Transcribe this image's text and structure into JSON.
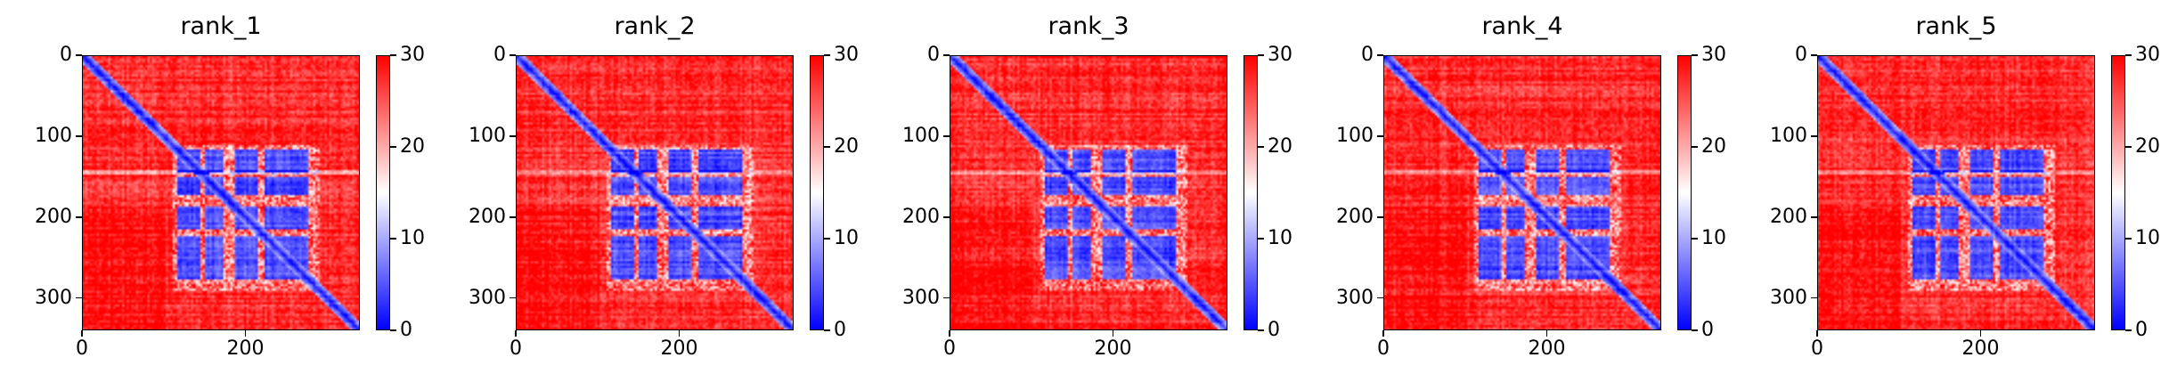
{
  "chart_data": [
    {
      "type": "heatmap",
      "title": "rank_1",
      "x_ticks": [
        "0",
        "200"
      ],
      "y_ticks": [
        "0",
        "100",
        "200",
        "300"
      ],
      "colorbar_ticks": [
        "0",
        "10",
        "20",
        "30"
      ],
      "xlim": [
        0,
        340
      ],
      "ylim": [
        340,
        0
      ],
      "clim": [
        0,
        30
      ],
      "colormap": "bwr"
    },
    {
      "type": "heatmap",
      "title": "rank_2",
      "x_ticks": [
        "0",
        "200"
      ],
      "y_ticks": [
        "0",
        "100",
        "200",
        "300"
      ],
      "colorbar_ticks": [
        "0",
        "10",
        "20",
        "30"
      ],
      "xlim": [
        0,
        340
      ],
      "ylim": [
        340,
        0
      ],
      "clim": [
        0,
        30
      ],
      "colormap": "bwr"
    },
    {
      "type": "heatmap",
      "title": "rank_3",
      "x_ticks": [
        "0",
        "200"
      ],
      "y_ticks": [
        "0",
        "100",
        "200",
        "300"
      ],
      "colorbar_ticks": [
        "0",
        "10",
        "20",
        "30"
      ],
      "xlim": [
        0,
        340
      ],
      "ylim": [
        340,
        0
      ],
      "clim": [
        0,
        30
      ],
      "colormap": "bwr"
    },
    {
      "type": "heatmap",
      "title": "rank_4",
      "x_ticks": [
        "0",
        "200"
      ],
      "y_ticks": [
        "0",
        "100",
        "200",
        "300"
      ],
      "colorbar_ticks": [
        "0",
        "10",
        "20",
        "30"
      ],
      "xlim": [
        0,
        340
      ],
      "ylim": [
        340,
        0
      ],
      "clim": [
        0,
        30
      ],
      "colormap": "bwr"
    },
    {
      "type": "heatmap",
      "title": "rank_5",
      "x_ticks": [
        "0",
        "200"
      ],
      "y_ticks": [
        "0",
        "100",
        "200",
        "300"
      ],
      "colorbar_ticks": [
        "0",
        "10",
        "20",
        "30"
      ],
      "xlim": [
        0,
        340
      ],
      "ylim": [
        340,
        0
      ],
      "clim": [
        0,
        30
      ],
      "colormap": "bwr"
    }
  ],
  "colors": {
    "low": "#0000ff",
    "mid": "#ffffff",
    "high": "#ff0000"
  }
}
